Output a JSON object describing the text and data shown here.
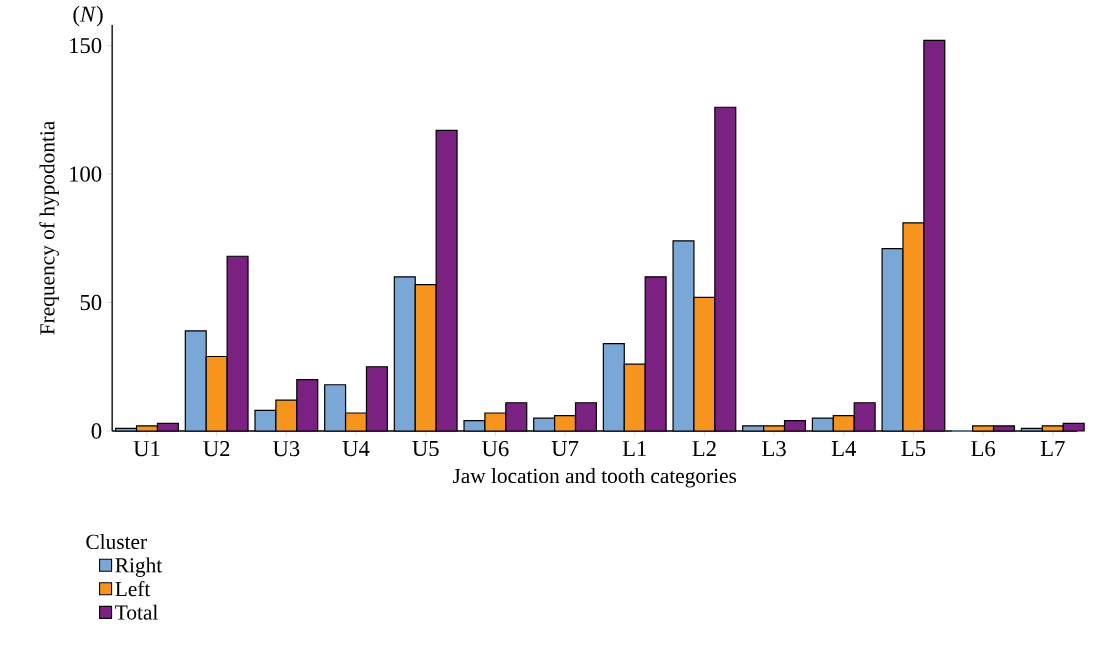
{
  "chart_data": {
    "type": "bar",
    "ylabel": "Frequency of hypodontia",
    "xlabel": "Jaw location and tooth categories",
    "legend_title": "Cluster",
    "annotations": [
      "(*N*)"
    ],
    "categories": [
      "U1",
      "U2",
      "U3",
      "U4",
      "U5",
      "U6",
      "U7",
      "L1",
      "L2",
      "L3",
      "L4",
      "L5",
      "L6",
      "L7"
    ],
    "series": [
      {
        "name": "Right",
        "color": "#7ba7d7",
        "values": [
          1,
          39,
          8,
          18,
          60,
          4,
          5,
          34,
          74,
          2,
          5,
          71,
          0,
          1
        ]
      },
      {
        "name": "Left",
        "color": "#f7941d",
        "values": [
          2,
          29,
          12,
          7,
          57,
          7,
          6,
          26,
          52,
          2,
          6,
          81,
          2,
          2
        ]
      },
      {
        "name": "Total",
        "color": "#7b2181",
        "values": [
          3,
          68,
          20,
          25,
          117,
          11,
          11,
          60,
          126,
          4,
          11,
          152,
          2,
          3
        ]
      }
    ],
    "ylim": [
      0,
      158
    ],
    "yticks": [
      0,
      50,
      100,
      150
    ],
    "legend": "bottom left"
  }
}
